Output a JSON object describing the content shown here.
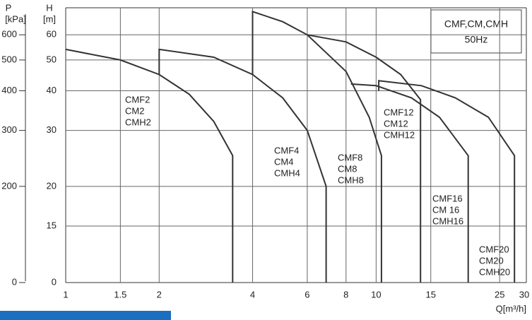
{
  "chart_data": {
    "type": "line",
    "legend_lines": [
      "CMF,CM,CMH",
      "50Hz"
    ],
    "y_label_lines": [
      "H",
      "[m]"
    ],
    "y2_label_lines": [
      "P",
      "[kPa]"
    ],
    "x_label": "Q[m³/h]",
    "xscale": "log",
    "yscale": "log",
    "xlim": [
      1,
      30
    ],
    "ylim": [
      0,
      73
    ],
    "y2lim": [
      0,
      730
    ],
    "xticks": [
      1,
      1.5,
      2,
      4,
      6,
      8,
      10,
      15,
      25,
      30
    ],
    "yticks": [
      0,
      15,
      20,
      30,
      40,
      50,
      60
    ],
    "y2ticks": [
      0,
      200,
      300,
      400,
      500,
      600
    ],
    "grid": true,
    "color": "#333333",
    "series": [
      {
        "name": [
          "CMF2",
          "CM2",
          "CMH2"
        ],
        "x": [
          1,
          1.5,
          2,
          2.5,
          3,
          3.45,
          3.45
        ],
        "values": [
          54,
          50,
          45,
          39,
          32,
          25,
          0
        ]
      },
      {
        "name": [
          "CMF4",
          "CM4",
          "CMH4"
        ],
        "x": [
          2,
          2,
          3,
          4,
          5,
          6,
          6.9,
          6.9
        ],
        "values": [
          45,
          54,
          51,
          45,
          38,
          30,
          20,
          0
        ]
      },
      {
        "name": [
          "CMF8",
          "CM8",
          "CMH8"
        ],
        "x": [
          4,
          4,
          5,
          6,
          8,
          9.5,
          10.4,
          10.4
        ],
        "values": [
          45,
          71,
          66,
          60,
          46,
          33,
          25,
          0
        ]
      },
      {
        "name": [
          "CMF12",
          "CM12",
          "CMH12"
        ],
        "x": [
          6,
          8,
          10,
          12,
          13.9,
          13.9
        ],
        "values": [
          60,
          57,
          51,
          45,
          37.5,
          0
        ]
      },
      {
        "name": [
          "CMF16",
          "CM 16",
          "CMH16"
        ],
        "x": [
          8.3,
          10,
          13,
          16,
          19.8,
          19.8
        ],
        "values": [
          42,
          41.5,
          38,
          33,
          25,
          0
        ]
      },
      {
        "name": [
          "CMF20",
          "CM20",
          "CMH20"
        ],
        "x": [
          10.2,
          10.2,
          14,
          18,
          23,
          27.9,
          27.9
        ],
        "values": [
          40,
          43,
          41.5,
          38,
          33,
          25,
          0
        ]
      }
    ]
  }
}
